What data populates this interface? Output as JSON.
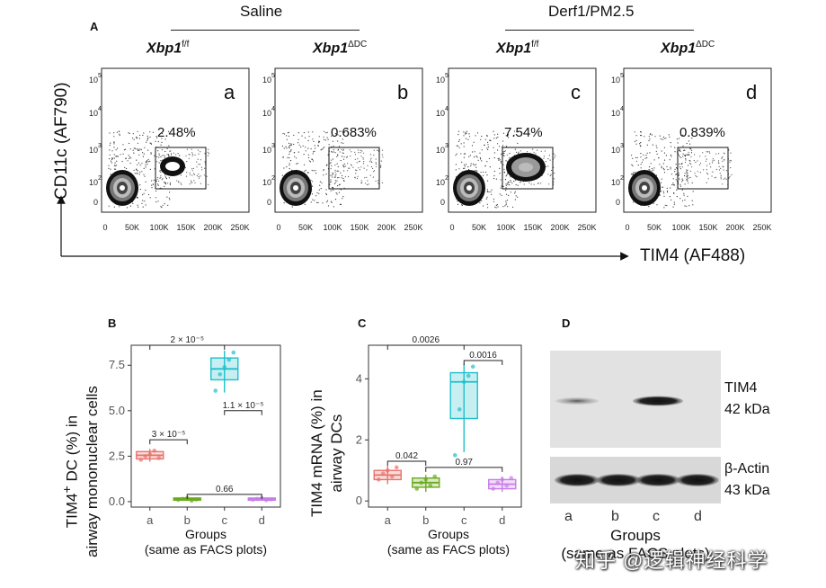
{
  "panelA": {
    "letter": "A",
    "group_saline": "Saline",
    "group_derf": "Derf1/PM2.5",
    "genotype_ff": "Xbp1",
    "genotype_ff_sup": "f/f",
    "genotype_dc": "Xbp1",
    "genotype_dc_sup": "ΔDC",
    "y_axis_label": "CD11c (AF790)",
    "x_axis_label": "TIM4 (AF488)",
    "x_ticks": [
      "0",
      "50K",
      "100K",
      "150K",
      "200K",
      "250K"
    ],
    "y_ticks": [
      "0",
      "10",
      "10",
      "10",
      "10"
    ],
    "y_tick_exps": [
      "",
      "2",
      "3",
      "4",
      "5"
    ],
    "plots": [
      {
        "id": "a",
        "percent": "2.48%"
      },
      {
        "id": "b",
        "percent": "0.683%"
      },
      {
        "id": "c",
        "percent": "7.54%"
      },
      {
        "id": "d",
        "percent": "0.839%"
      }
    ]
  },
  "panelB": {
    "letter": "B",
    "y_label_line1": "TIM4",
    "y_label_sup": "+",
    "y_label_line1_rest": " DC (%) in",
    "y_label_line2": "airway mononuclear cells",
    "x_label_line1": "Groups",
    "x_label_line2": "(same as FACS plots)"
  },
  "panelC": {
    "letter": "C",
    "y_label_line1": "TIM4 mRNA (%) in",
    "y_label_line2": "airway DCs",
    "x_label_line1": "Groups",
    "x_label_line2": "(same as FACS plots)"
  },
  "panelD": {
    "letter": "D",
    "tim4_label": "TIM4",
    "tim4_kda": "42 kDa",
    "actin_label": "β-Actin",
    "actin_kda": "43 kDa",
    "lanes": [
      "a",
      "b",
      "c",
      "d"
    ],
    "x_label_line1": "Groups",
    "x_label_line2": "(same as FACS plots)"
  },
  "chart_data": [
    {
      "type": "box",
      "id": "B",
      "categories": [
        "a",
        "b",
        "c",
        "d"
      ],
      "colors": [
        "#e8736b",
        "#6aaa1e",
        "#1fbfcc",
        "#c77de8"
      ],
      "ylim": [
        -0.3,
        8.6
      ],
      "yticks": [
        0.0,
        2.5,
        5.0,
        7.5
      ],
      "ytick_labels": [
        "0.0",
        "2.5",
        "5.0",
        "7.5"
      ],
      "boxes": [
        {
          "q1": 2.35,
          "median": 2.55,
          "q3": 2.75,
          "min": 2.2,
          "max": 2.9,
          "points": [
            2.3,
            2.5,
            2.6,
            2.8,
            2.4
          ]
        },
        {
          "q1": 0.08,
          "median": 0.13,
          "q3": 0.2,
          "min": 0.05,
          "max": 0.25,
          "points": [
            0.1,
            0.15,
            0.2,
            0.05,
            0.12
          ]
        },
        {
          "q1": 6.7,
          "median": 7.3,
          "q3": 7.9,
          "min": 6.0,
          "max": 8.3,
          "points": [
            6.1,
            7.0,
            7.4,
            7.8,
            8.2
          ]
        },
        {
          "q1": 0.08,
          "median": 0.13,
          "q3": 0.2,
          "min": 0.05,
          "max": 0.25,
          "points": [
            0.1,
            0.15,
            0.2,
            0.08,
            0.12
          ]
        }
      ],
      "comparisons": [
        {
          "from": "a",
          "to": "c",
          "y": 8.6,
          "label": "2 × 10⁻⁵"
        },
        {
          "from": "a",
          "to": "b",
          "y": 3.4,
          "label": "3 × 10⁻⁵"
        },
        {
          "from": "c",
          "to": "d",
          "y": 5.0,
          "label": "1.1 × 10⁻⁵"
        },
        {
          "from": "b",
          "to": "d",
          "y": 0.4,
          "label": "0.66"
        }
      ]
    },
    {
      "type": "box",
      "id": "C",
      "categories": [
        "a",
        "b",
        "c",
        "d"
      ],
      "colors": [
        "#e8736b",
        "#6aaa1e",
        "#1fbfcc",
        "#c77de8"
      ],
      "ylim": [
        -0.2,
        5.1
      ],
      "yticks": [
        0,
        2,
        4
      ],
      "ytick_labels": [
        "0",
        "2",
        "4"
      ],
      "boxes": [
        {
          "q1": 0.7,
          "median": 0.85,
          "q3": 1.0,
          "min": 0.55,
          "max": 1.15,
          "points": [
            0.7,
            0.9,
            1.0,
            0.8,
            1.1
          ]
        },
        {
          "q1": 0.45,
          "median": 0.6,
          "q3": 0.75,
          "min": 0.3,
          "max": 0.85,
          "points": [
            0.4,
            0.6,
            0.7,
            0.5,
            0.8
          ]
        },
        {
          "q1": 2.7,
          "median": 3.9,
          "q3": 4.2,
          "min": 1.6,
          "max": 4.5,
          "points": [
            1.5,
            3.0,
            3.9,
            4.1,
            4.4
          ]
        },
        {
          "q1": 0.4,
          "median": 0.55,
          "q3": 0.7,
          "min": 0.3,
          "max": 0.8,
          "points": [
            0.4,
            0.6,
            0.7,
            0.5,
            0.75
          ]
        }
      ],
      "comparisons": [
        {
          "from": "a",
          "to": "c",
          "y": 5.1,
          "label": "0.0026"
        },
        {
          "from": "c",
          "to": "d",
          "y": 4.6,
          "label": "0.0016"
        },
        {
          "from": "a",
          "to": "b",
          "y": 1.3,
          "label": "0.042"
        },
        {
          "from": "b",
          "to": "d",
          "y": 1.1,
          "label": "0.97"
        }
      ]
    }
  ],
  "watermark": "知乎 @逻辑神经科学"
}
